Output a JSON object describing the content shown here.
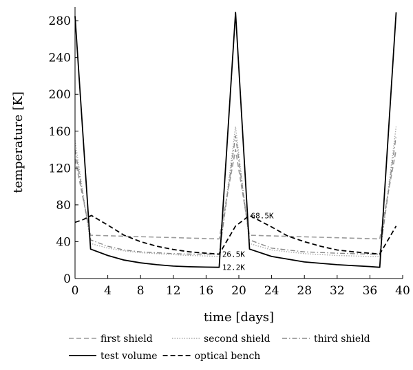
{
  "chart_data": {
    "type": "line",
    "title": "",
    "xlabel": "time [days]",
    "ylabel": "temperature [K]",
    "xlim": [
      0,
      40
    ],
    "ylim": [
      0,
      295
    ],
    "xticks": [
      0,
      4,
      8,
      12,
      16,
      20,
      24,
      28,
      32,
      36,
      40
    ],
    "yticks": [
      0,
      40,
      80,
      120,
      160,
      200,
      240,
      280
    ],
    "grid": false,
    "legend_position": "bottom",
    "annotations": [
      {
        "text": "68.5K",
        "x": 21.3,
        "y": 68.5
      },
      {
        "text": "26.5K",
        "x": 17.8,
        "y": 26.5
      },
      {
        "text": "12.2K",
        "x": 17.8,
        "y": 12.2
      }
    ],
    "series": [
      {
        "name": "first shield",
        "style": "dashed",
        "color": "#999999",
        "x": [
          0,
          1.9,
          17.6,
          19.6,
          21.3,
          37.2,
          39.2
        ],
        "y": [
          130,
          47,
          43,
          140,
          47,
          43,
          140
        ]
      },
      {
        "name": "second shield",
        "style": "dotted",
        "color": "#aaaaaa",
        "x": [
          0,
          1.9,
          4,
          6,
          8,
          10,
          12,
          14,
          16,
          17.6,
          19.6,
          21.3,
          24,
          28,
          32,
          36,
          37.2,
          39.2
        ],
        "y": [
          150,
          38,
          33,
          30,
          28,
          27,
          26,
          25,
          24.5,
          24,
          165,
          38,
          31,
          27,
          25,
          24,
          24,
          165
        ]
      },
      {
        "name": "third shield",
        "style": "dashdot",
        "color": "#888888",
        "x": [
          0,
          1.9,
          4,
          6,
          8,
          10,
          12,
          14,
          16,
          17.6,
          19.6,
          21.3,
          24,
          28,
          32,
          36,
          37.2,
          39.2
        ],
        "y": [
          140,
          42,
          35,
          31,
          29,
          28,
          27,
          26.5,
          26.5,
          26.5,
          155,
          42,
          33,
          29,
          27.5,
          26.5,
          26.5,
          155
        ]
      },
      {
        "name": "test volume",
        "style": "solid",
        "color": "#000000",
        "x": [
          0,
          1.9,
          4,
          6,
          8,
          10,
          12,
          14,
          16,
          17.6,
          19.6,
          21.3,
          24,
          28,
          32,
          36,
          37.2,
          39.2
        ],
        "y": [
          285,
          32,
          25,
          20,
          17,
          15,
          13.5,
          12.8,
          12.4,
          12.2,
          289,
          32,
          24,
          18,
          15,
          13,
          12.2,
          289
        ]
      },
      {
        "name": "optical bench",
        "style": "dashed-bold",
        "color": "#000000",
        "x": [
          0,
          1,
          2,
          4,
          6,
          8,
          10,
          12,
          14,
          16,
          17.6,
          19.6,
          21.3,
          24,
          26,
          28,
          30,
          32,
          34,
          36,
          37.2,
          39.2
        ],
        "y": [
          61,
          64,
          68.5,
          58,
          47,
          40,
          35,
          31.5,
          29,
          27.5,
          26.5,
          57,
          68.5,
          56,
          46,
          40,
          35,
          31,
          29,
          27.5,
          26.5,
          57
        ]
      }
    ]
  }
}
